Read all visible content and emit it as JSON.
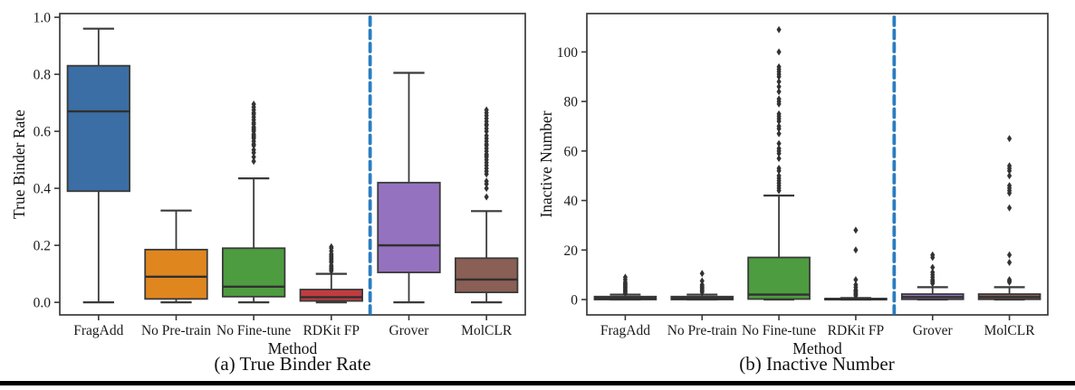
{
  "figure": {
    "caption_a": "(a) True Binder Rate",
    "caption_b": "(b) Inactive Number"
  },
  "colors": {
    "box_palette": [
      "#3b6ea4",
      "#e0861f",
      "#4d9c3f",
      "#c13c3f",
      "#9572bf",
      "#8a5f55"
    ],
    "divider_blue": "#2b7dc0",
    "edge_dark": "#3a3a3a",
    "median_dark": "#303030",
    "outlier_dark": "#333333",
    "tick_text": "#1a1a1a"
  },
  "chart_data": [
    {
      "type": "box",
      "title": "(a) True Binder Rate",
      "xlabel": "Method",
      "ylabel": "True Binder Rate",
      "categories": [
        "FragAdd",
        "No Pre-train",
        "No Fine-tune",
        "RDKit FP",
        "Grover",
        "MolCLR"
      ],
      "ylim": [
        -0.044,
        1.013
      ],
      "yticks": [
        0.0,
        0.2,
        0.4,
        0.6,
        0.8,
        1.0
      ],
      "ytick_labels": [
        "0.0",
        "0.2",
        "0.4",
        "0.6",
        "0.8",
        "1.0"
      ],
      "grid": false,
      "legend": "none",
      "divider_after_index": 3,
      "boxes": [
        {
          "label": "FragAdd",
          "whislo": 0.0,
          "q1": 0.39,
          "med": 0.67,
          "q3": 0.83,
          "whishi": 0.96,
          "outliers": []
        },
        {
          "label": "No Pre-train",
          "whislo": 0.0,
          "q1": 0.012,
          "med": 0.09,
          "q3": 0.185,
          "whishi": 0.322,
          "outliers": []
        },
        {
          "label": "No Fine-tune",
          "whislo": 0.0,
          "q1": 0.02,
          "med": 0.055,
          "q3": 0.19,
          "whishi": 0.435,
          "outliers": [
            0.495,
            0.51,
            0.525,
            0.535,
            0.55,
            0.555,
            0.565,
            0.575,
            0.58,
            0.585,
            0.59,
            0.6,
            0.605,
            0.61,
            0.615,
            0.625,
            0.63,
            0.64,
            0.65,
            0.66,
            0.665,
            0.675,
            0.685,
            0.695
          ]
        },
        {
          "label": "RDKit FP",
          "whislo": 0.0,
          "q1": 0.005,
          "med": 0.018,
          "q3": 0.045,
          "whishi": 0.1,
          "outliers": [
            0.11,
            0.115,
            0.12,
            0.125,
            0.13,
            0.14,
            0.145,
            0.15,
            0.155,
            0.16,
            0.165,
            0.17,
            0.18,
            0.19,
            0.195
          ]
        },
        {
          "label": "Grover",
          "whislo": 0.0,
          "q1": 0.105,
          "med": 0.2,
          "q3": 0.42,
          "whishi": 0.805,
          "outliers": []
        },
        {
          "label": "MolCLR",
          "whislo": 0.0,
          "q1": 0.035,
          "med": 0.08,
          "q3": 0.155,
          "whishi": 0.32,
          "outliers": [
            0.37,
            0.4,
            0.415,
            0.425,
            0.45,
            0.46,
            0.47,
            0.48,
            0.49,
            0.5,
            0.51,
            0.515,
            0.52,
            0.53,
            0.54,
            0.55,
            0.555,
            0.565,
            0.575,
            0.585,
            0.6,
            0.61,
            0.62,
            0.625,
            0.635,
            0.645,
            0.655,
            0.665,
            0.675
          ]
        }
      ]
    },
    {
      "type": "box",
      "title": "(b) Inactive Number",
      "xlabel": "Method",
      "ylabel": "Inactive Number",
      "categories": [
        "FragAdd",
        "No Pre-train",
        "No Fine-tune",
        "RDKit FP",
        "Grover",
        "MolCLR"
      ],
      "ylim": [
        -6.2,
        115.5
      ],
      "yticks": [
        0,
        20,
        40,
        60,
        80,
        100
      ],
      "ytick_labels": [
        "0",
        "20",
        "40",
        "60",
        "80",
        "100"
      ],
      "grid": false,
      "legend": "none",
      "divider_after_index": 3,
      "boxes": [
        {
          "label": "FragAdd",
          "whislo": 0,
          "q1": 0,
          "med": 0.5,
          "q3": 1.2,
          "whishi": 2,
          "outliers": [
            2.5,
            3,
            3.5,
            4,
            4.5,
            5,
            5.5,
            6,
            6.5,
            7,
            8,
            9
          ]
        },
        {
          "label": "No Pre-train",
          "whislo": 0,
          "q1": 0,
          "med": 0.5,
          "q3": 1.2,
          "whishi": 2,
          "outliers": [
            3,
            3.5,
            4,
            4.5,
            5,
            5.5,
            6,
            7.5,
            10.5
          ]
        },
        {
          "label": "No Fine-tune",
          "whislo": 0,
          "q1": 0.2,
          "med": 2,
          "q3": 17,
          "whishi": 42,
          "outliers": [
            44,
            45,
            46,
            47,
            48,
            49,
            50,
            52,
            53,
            57,
            59,
            60,
            61,
            63,
            67,
            69,
            70,
            72,
            73,
            74,
            75,
            79,
            80,
            81,
            84,
            86,
            88,
            90,
            91,
            92,
            93,
            94,
            100,
            109
          ]
        },
        {
          "label": "RDKit FP",
          "whislo": 0,
          "q1": 0,
          "med": 0.15,
          "q3": 0.4,
          "whishi": 0.6,
          "outliers": [
            1.5,
            2,
            2.5,
            3,
            3.5,
            4,
            5,
            6,
            8,
            20,
            28
          ]
        },
        {
          "label": "Grover",
          "whislo": 0,
          "q1": 0.1,
          "med": 1,
          "q3": 2.2,
          "whishi": 5,
          "outliers": [
            6.5,
            7,
            7.5,
            8,
            9,
            10,
            11,
            13,
            17,
            18
          ]
        },
        {
          "label": "MolCLR",
          "whislo": 0,
          "q1": 0.1,
          "med": 1,
          "q3": 2.2,
          "whishi": 5,
          "outliers": [
            7,
            7.5,
            8,
            15,
            18,
            37,
            43,
            44,
            45,
            46,
            50,
            52,
            53,
            54,
            65
          ]
        }
      ]
    }
  ]
}
